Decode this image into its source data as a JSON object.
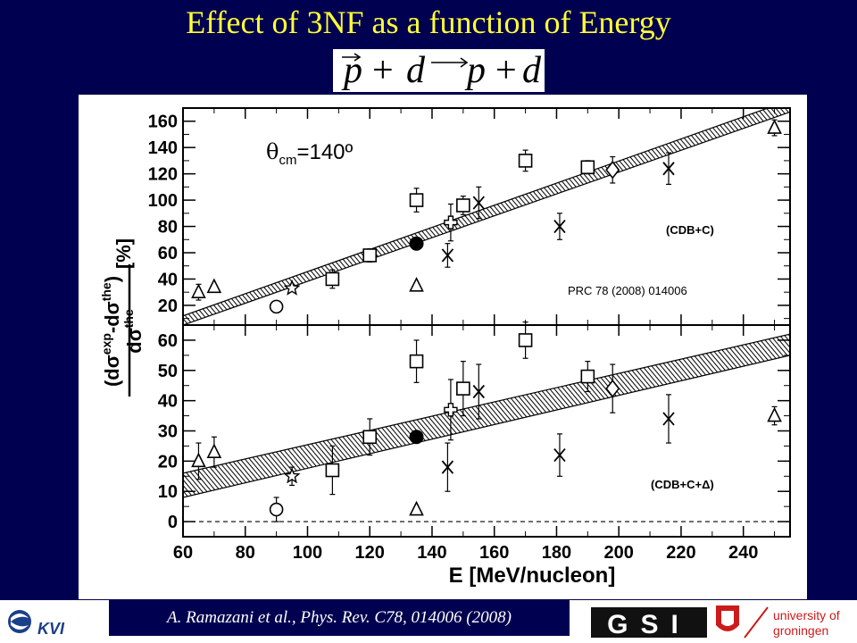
{
  "slide": {
    "title": "Effect of 3NF as a function of Energy",
    "reaction": {
      "p1": "p",
      "plus1": "+",
      "d1": "d",
      "p2": "p",
      "plus2": "+",
      "d2": "d"
    },
    "citation": "A. Ramazani et al., Phys. Rev. C78, 014006 (2008)",
    "logos": {
      "left": "KVI",
      "center": "GSI",
      "right_line1": "university of",
      "right_line2": "groningen"
    }
  },
  "chart_data": {
    "type": "scatter",
    "xlabel": "E [MeV/nucleon]",
    "ylabel": "(dσ^exp - dσ^the) / dσ^the [%]",
    "xlim": [
      60,
      255
    ],
    "x_ticks": [
      "60",
      "80",
      "100",
      "120",
      "140",
      "160",
      "180",
      "200",
      "220",
      "240"
    ],
    "annotation_angle": "θ",
    "annotation_sub": "cm",
    "annotation_rest": "=140º",
    "reference": "PRC 78 (2008) 014006",
    "panels": [
      {
        "label": "(CDB+C)",
        "ylim": [
          5,
          170
        ],
        "y_ticks": [
          "20",
          "40",
          "60",
          "80",
          "100",
          "120",
          "140",
          "160"
        ],
        "band": [
          {
            "x": 60,
            "low": 5,
            "high": 12
          },
          {
            "x": 255,
            "low": 167,
            "high": 176
          }
        ],
        "points": [
          {
            "x": 65,
            "y": 30,
            "err": 6,
            "marker": "triangle"
          },
          {
            "x": 70,
            "y": 34,
            "err": 0,
            "marker": "triangle"
          },
          {
            "x": 90,
            "y": 19,
            "err": 0,
            "marker": "circle"
          },
          {
            "x": 95,
            "y": 33,
            "err": 0,
            "marker": "star"
          },
          {
            "x": 108,
            "y": 40,
            "err": 7,
            "marker": "square"
          },
          {
            "x": 120,
            "y": 58,
            "err": 5,
            "marker": "square"
          },
          {
            "x": 135,
            "y": 67,
            "err": 0,
            "marker": "filled-circle"
          },
          {
            "x": 135,
            "y": 100,
            "err": 9,
            "marker": "square"
          },
          {
            "x": 135,
            "y": 35,
            "err": 0,
            "marker": "triangle"
          },
          {
            "x": 145,
            "y": 58,
            "err": 9,
            "marker": "cross"
          },
          {
            "x": 146,
            "y": 83,
            "err": 14,
            "marker": "plus"
          },
          {
            "x": 150,
            "y": 96,
            "err": 7,
            "marker": "square"
          },
          {
            "x": 155,
            "y": 98,
            "err": 12,
            "marker": "cross"
          },
          {
            "x": 170,
            "y": 130,
            "err": 8,
            "marker": "square"
          },
          {
            "x": 181,
            "y": 80,
            "err": 10,
            "marker": "cross"
          },
          {
            "x": 190,
            "y": 125,
            "err": 5,
            "marker": "square"
          },
          {
            "x": 198,
            "y": 123,
            "err": 10,
            "marker": "diamond"
          },
          {
            "x": 216,
            "y": 124,
            "err": 12,
            "marker": "cross"
          },
          {
            "x": 250,
            "y": 155,
            "err": 6,
            "marker": "triangle"
          }
        ]
      },
      {
        "label": "(CDB+C+Δ)",
        "ylim": [
          -5,
          65
        ],
        "y_ticks": [
          "0",
          "10",
          "20",
          "30",
          "40",
          "50",
          "60"
        ],
        "band": [
          {
            "x": 60,
            "low": 8,
            "high": 16
          },
          {
            "x": 255,
            "low": 55,
            "high": 62
          }
        ],
        "reference_line": 0,
        "points": [
          {
            "x": 65,
            "y": 20,
            "err": 6,
            "marker": "triangle"
          },
          {
            "x": 70,
            "y": 23,
            "err": 5,
            "marker": "triangle"
          },
          {
            "x": 90,
            "y": 4,
            "err": 4,
            "marker": "circle"
          },
          {
            "x": 95,
            "y": 15,
            "err": 3,
            "marker": "star"
          },
          {
            "x": 108,
            "y": 17,
            "err": 8,
            "marker": "square"
          },
          {
            "x": 120,
            "y": 28,
            "err": 6,
            "marker": "square"
          },
          {
            "x": 135,
            "y": 28,
            "err": 0,
            "marker": "filled-circle"
          },
          {
            "x": 135,
            "y": 53,
            "err": 7,
            "marker": "square"
          },
          {
            "x": 135,
            "y": 4,
            "err": 0,
            "marker": "triangle"
          },
          {
            "x": 145,
            "y": 18,
            "err": 8,
            "marker": "cross"
          },
          {
            "x": 146,
            "y": 37,
            "err": 10,
            "marker": "plus"
          },
          {
            "x": 150,
            "y": 44,
            "err": 9,
            "marker": "square"
          },
          {
            "x": 155,
            "y": 43,
            "err": 9,
            "marker": "cross"
          },
          {
            "x": 170,
            "y": 60,
            "err": 6,
            "marker": "square"
          },
          {
            "x": 181,
            "y": 22,
            "err": 7,
            "marker": "cross"
          },
          {
            "x": 190,
            "y": 48,
            "err": 5,
            "marker": "square"
          },
          {
            "x": 198,
            "y": 44,
            "err": 8,
            "marker": "diamond"
          },
          {
            "x": 216,
            "y": 34,
            "err": 8,
            "marker": "cross"
          },
          {
            "x": 250,
            "y": 35,
            "err": 3,
            "marker": "triangle"
          }
        ]
      }
    ]
  }
}
